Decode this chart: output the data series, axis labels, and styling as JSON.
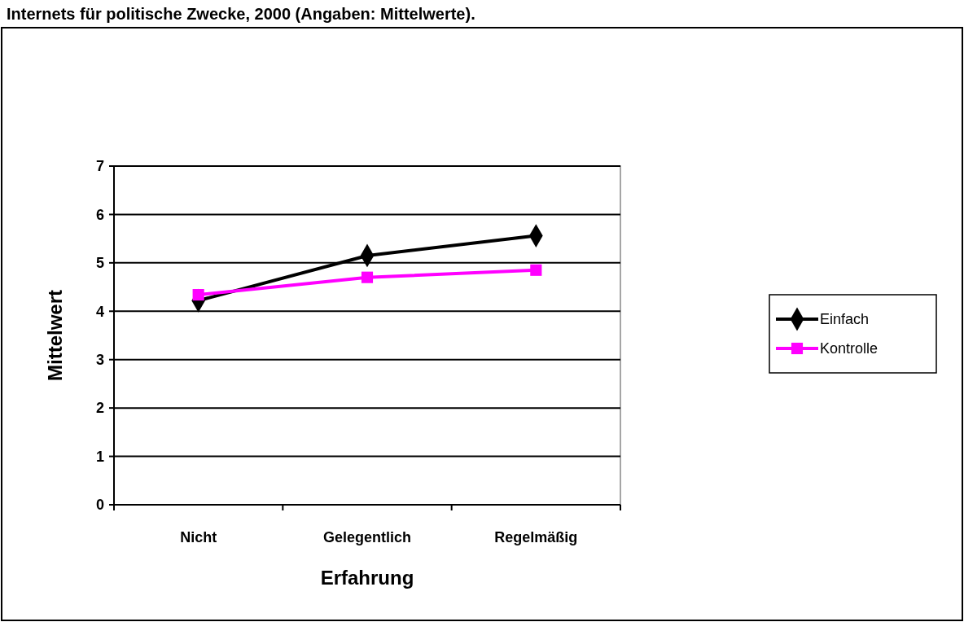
{
  "chart_data": {
    "type": "line",
    "title": "Internets für politische Zwecke, 2000 (Angaben: Mittelwerte).",
    "xlabel": "Erfahrung",
    "ylabel": "Mittelwert",
    "categories": [
      "Nicht",
      "Gelegentlich",
      "Regelmäßig"
    ],
    "series": [
      {
        "name": "Einfach",
        "color": "#000000",
        "marker": "diamond",
        "values": [
          4.22,
          5.15,
          5.56
        ]
      },
      {
        "name": "Kontrolle",
        "color": "#ff00ff",
        "marker": "square",
        "values": [
          4.34,
          4.7,
          4.85
        ]
      }
    ],
    "ylim": [
      0,
      7
    ],
    "yticks": [
      0,
      1,
      2,
      3,
      4,
      5,
      6,
      7
    ],
    "grid": "y",
    "legend": "right"
  }
}
